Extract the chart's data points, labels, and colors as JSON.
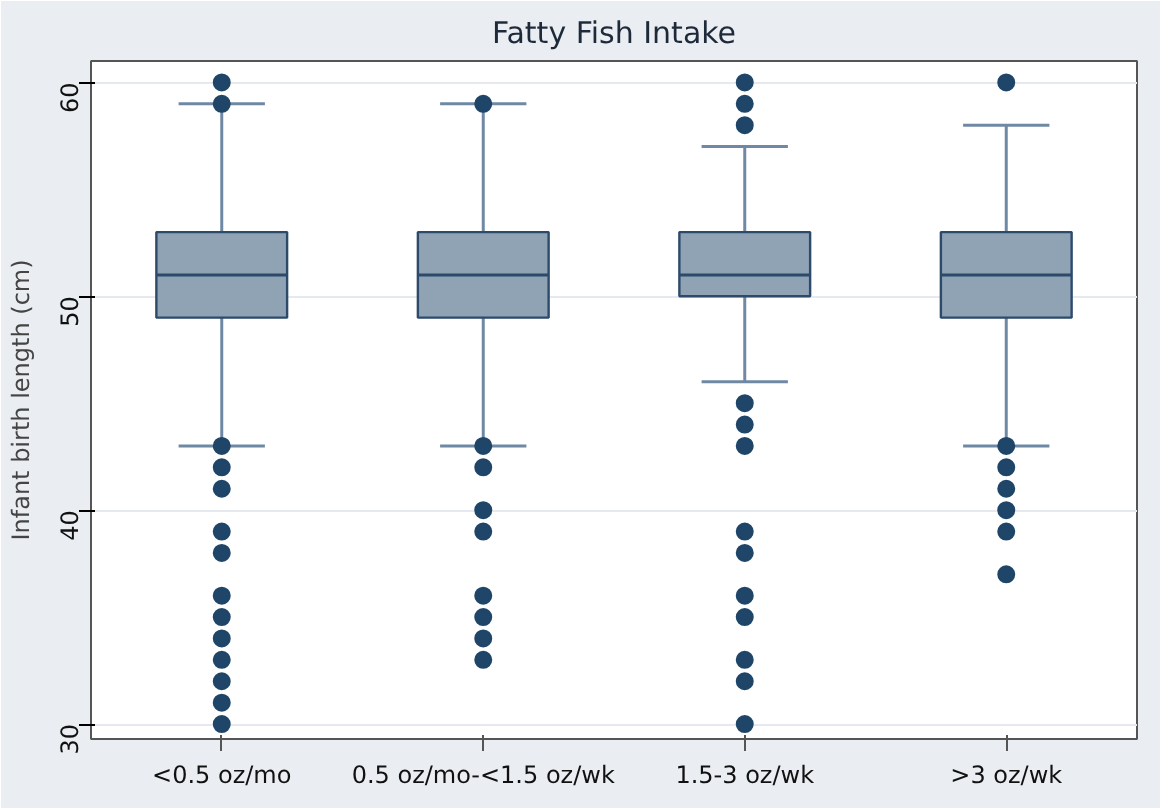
{
  "chart_data": {
    "type": "box",
    "title": "Fatty Fish Intake",
    "ylabel": "Infant birth length (cm)",
    "categories": [
      "<0.5 oz/mo",
      "0.5 oz/mo-<1.5 oz/wk",
      "1.5-3 oz/wk",
      ">3 oz/wk"
    ],
    "color": "#8fa3b5",
    "boxes": [
      {
        "low": 43,
        "q1": 49,
        "median": 51,
        "q3": 53,
        "high": 59,
        "outliers": [
          60,
          59,
          43,
          42,
          41,
          39,
          38,
          36,
          35,
          34,
          33,
          32,
          31,
          30
        ]
      },
      {
        "low": 43,
        "q1": 49,
        "median": 51,
        "q3": 53,
        "high": 59,
        "outliers": [
          59,
          43,
          42,
          40,
          39,
          36,
          35,
          34,
          33
        ]
      },
      {
        "low": 46,
        "q1": 50,
        "median": 51,
        "q3": 53,
        "high": 57,
        "outliers": [
          60,
          59,
          58,
          45,
          44,
          43,
          39,
          38,
          36,
          35,
          33,
          32,
          30
        ]
      },
      {
        "low": 43,
        "q1": 49,
        "median": 51,
        "q3": 53,
        "high": 58,
        "outliers": [
          60,
          43,
          42,
          41,
          40,
          39,
          37
        ]
      }
    ],
    "ylim": [
      29.3,
      61
    ],
    "yticks": [
      30,
      40,
      50,
      60
    ],
    "grid": "y"
  }
}
